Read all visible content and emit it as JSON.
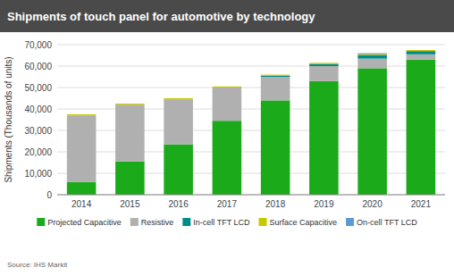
{
  "chart_data": {
    "type": "bar",
    "stacked": true,
    "title": "Shipments of touch panel for automotive by technology",
    "ylabel": "Shipments (Thousands of units)",
    "annotations": [
      "Source: IHS Markit"
    ],
    "categories": [
      "2014",
      "2015",
      "2016",
      "2017",
      "2018",
      "2019",
      "2020",
      "2021"
    ],
    "series": [
      {
        "name": "Projected Capacitive",
        "color": "#1aaa1a",
        "values": [
          6000,
          15500,
          23500,
          34500,
          44000,
          53000,
          59000,
          63000
        ]
      },
      {
        "name": "Resistive",
        "color": "#b0b0b0",
        "values": [
          31000,
          26500,
          21000,
          15500,
          11000,
          7000,
          4500,
          2500
        ]
      },
      {
        "name": "In-cell TFT LCD",
        "color": "#008b8b",
        "values": [
          0,
          0,
          0,
          0,
          500,
          1000,
          1500,
          1500
        ]
      },
      {
        "name": "Surface Capacitive",
        "color": "#c8c800",
        "values": [
          500,
          500,
          500,
          500,
          500,
          500,
          500,
          500
        ]
      },
      {
        "name": "On-cell TFT LCD",
        "color": "#5b9bd5",
        "values": [
          0,
          0,
          0,
          0,
          0,
          0,
          500,
          0
        ]
      }
    ],
    "ylim": [
      0,
      70000
    ],
    "yticks": [
      0,
      {
        "value": 10000,
        "label": "10,000"
      },
      {
        "value": 20000,
        "label": "20,000"
      },
      {
        "value": 30000,
        "label": "30,000"
      },
      {
        "value": 40000,
        "label": "40,000"
      },
      {
        "value": 50000,
        "label": "50,000"
      },
      {
        "value": 60000,
        "label": "60,000"
      },
      {
        "value": 70000,
        "label": "70,000"
      }
    ],
    "grid": true,
    "legend": "bottom"
  }
}
